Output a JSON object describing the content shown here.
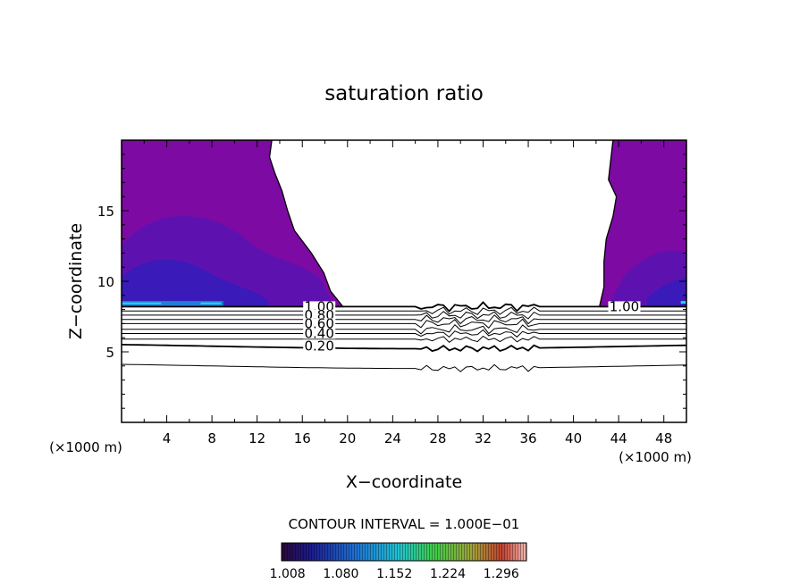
{
  "chart_data": {
    "type": "heatmap",
    "title": "saturation ratio",
    "xlabel": "X−coordinate",
    "ylabel": "Z−coordinate",
    "x_unit_left": "(×1000 m)",
    "x_unit_right": "(×1000 m)",
    "xlim": [
      0,
      50
    ],
    "ylim": [
      0,
      20
    ],
    "x_ticks": [
      "4",
      "8",
      "12",
      "16",
      "20",
      "24",
      "28",
      "32",
      "36",
      "40",
      "44",
      "48"
    ],
    "y_ticks": [
      "5",
      "10",
      "15"
    ],
    "contour_interval_label": "CONTOUR INTERVAL = 1.000E−01",
    "contour_levels": [
      0.1,
      0.2,
      0.3,
      0.4,
      0.5,
      0.6,
      0.7,
      0.8,
      0.9,
      1.0
    ],
    "contour_labels": [
      {
        "text": "1.00",
        "x": 17.5,
        "level": 1.0
      },
      {
        "text": "0.80",
        "x": 17.5,
        "level": 0.8
      },
      {
        "text": "0.60",
        "x": 17.5,
        "level": 0.6
      },
      {
        "text": "0.40",
        "x": 17.5,
        "level": 0.4
      },
      {
        "text": "0.20",
        "x": 17.5,
        "level": 0.2
      },
      {
        "text": "1.00",
        "x": 44.5,
        "level": 1.0
      }
    ],
    "supersaturated_regions": [
      {
        "x_range": [
          0,
          19.6
        ],
        "z_range": [
          8.2,
          20
        ]
      },
      {
        "x_range": [
          42.3,
          50
        ],
        "z_range": [
          8.2,
          20
        ]
      }
    ],
    "colorbar": {
      "range": [
        1.0,
        1.33
      ],
      "tick_labels": [
        "1.008",
        "1.080",
        "1.152",
        "1.224",
        "1.296"
      ]
    },
    "colors": {
      "fill_main": "#7c0aa3",
      "fill_mid": "#5d12b0",
      "fill_deep": "#3a1ab8",
      "fill_edge": "#1e7fd8",
      "fill_cyan": "#26d6e8"
    }
  }
}
